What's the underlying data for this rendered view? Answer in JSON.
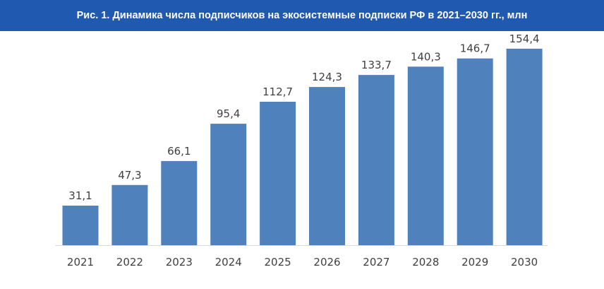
{
  "header": {
    "title": "Рис. 1. Динамика числа подписчиков на экосистемные подписки РФ в 2021–2030 гг., млн"
  },
  "colors": {
    "header_bg": "#1f5ab0",
    "bar": "#4f81bd",
    "axis": "#d9d9d9",
    "text": "#404040"
  },
  "chart_data": {
    "type": "bar",
    "title": "Рис. 1. Динамика числа подписчиков на экосистемные подписки РФ в 2021–2030 гг., млн",
    "xlabel": "",
    "ylabel": "",
    "categories": [
      "2021",
      "2022",
      "2023",
      "2024",
      "2025",
      "2026",
      "2027",
      "2028",
      "2029",
      "2030"
    ],
    "values": [
      31.1,
      47.3,
      66.1,
      95.4,
      112.7,
      124.3,
      133.7,
      140.3,
      146.7,
      154.4
    ],
    "value_labels": [
      "31,1",
      "47,3",
      "66,1",
      "95,4",
      "112,7",
      "124,3",
      "133,7",
      "140,3",
      "146,7",
      "154,4"
    ],
    "ylim": [
      0,
      168.2
    ],
    "grid": false,
    "legend": "none"
  }
}
